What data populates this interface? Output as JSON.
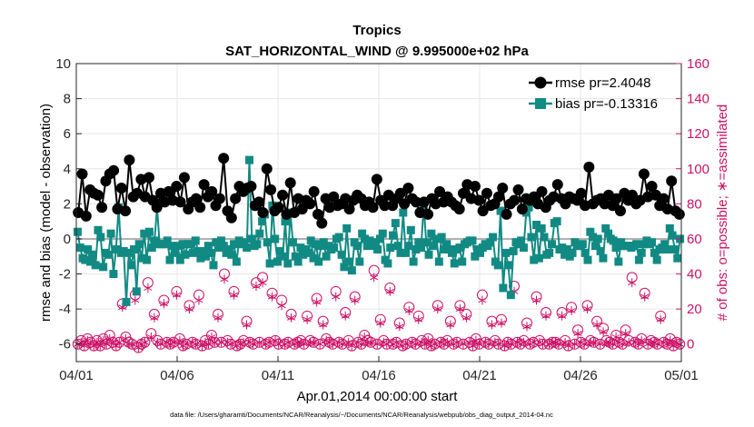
{
  "chart_data": {
    "type": "line",
    "title": "Tropics",
    "subtitle": "SAT_HORIZONTAL_WIND @ 9.995000e+02 hPa",
    "xlabel": "Apr.01,2014 00:00:00 start",
    "ylabel_left": "rmse and bias (model - observation)",
    "ylabel_right": "# of obs: o=possible; ∗=assimilated",
    "footnote": "data file: /Users/gharamti/Documents/NCAR/Reanalysis/~/Documents/NCAR/Reanalysis/webpub/obs_diag_output_2014-04.nc",
    "x_range": [
      0,
      30
    ],
    "ylim_left": [
      -7,
      10
    ],
    "ylim_right": [
      -10,
      160
    ],
    "x_tick_values": [
      0,
      5,
      10,
      15,
      20,
      25,
      30
    ],
    "x_tick_labels": [
      "04/01",
      "04/06",
      "04/11",
      "04/16",
      "04/21",
      "04/26",
      "05/01"
    ],
    "y_ticks_left": [
      "10",
      "8",
      "6",
      "4",
      "2",
      "0",
      "-2",
      "-4",
      "-6"
    ],
    "y_ticks_right": [
      "160",
      "140",
      "120",
      "100",
      "80",
      "60",
      "40",
      "20",
      "0"
    ],
    "legend_position": "top-right",
    "colors": {
      "rmse": "#000000",
      "bias": "#128a84",
      "obs": "#cc1166",
      "zero_line": "#b0b0b0"
    },
    "series": [
      {
        "name": "rmse pr=2.4048",
        "marker": "circle",
        "values": [
          1.5,
          3.7,
          1.3,
          2.8,
          2.6,
          2.5,
          1.8,
          3.3,
          3.7,
          3.9,
          1.7,
          2.9,
          1.6,
          4.5,
          2.4,
          2.6,
          3.4,
          2.4,
          3.5,
          2.2,
          1.8,
          2.6,
          2.1,
          2.7,
          2.2,
          3.0,
          2.1,
          3.5,
          1.7,
          2.1,
          2.3,
          1.8,
          3.1,
          2.4,
          2.7,
          1.9,
          2.3,
          4.6,
          1.6,
          1.2,
          2.3,
          3.0,
          2.7,
          2.9,
          3.0,
          1.9,
          2.1,
          1.5,
          4.0,
          2.8,
          1.6,
          1.8,
          2.5,
          1.4,
          3.2,
          1.5,
          2.3,
          1.7,
          2.2,
          2.0,
          2.7,
          1.4,
          0.9,
          2.3,
          1.8,
          2.4,
          1.9,
          2.0,
          2.3,
          1.7,
          2.2,
          2.5,
          2.3,
          1.9,
          2.1,
          1.8,
          3.4,
          2.2,
          1.9,
          2.5,
          1.9,
          2.3,
          2.6,
          2.0,
          2.9,
          2.3,
          2.1,
          1.5,
          2.1,
          1.4,
          2.3,
          2.0,
          2.7,
          2.1,
          2.4,
          2.1,
          1.9,
          1.7,
          2.6,
          3.1,
          2.3,
          3.0,
          2.2,
          1.6,
          2.6,
          1.9,
          2.0,
          2.4,
          2.9,
          1.4,
          2.0,
          2.2,
          2.8,
          1.7,
          2.3,
          2.2,
          2.4,
          2.0,
          2.7,
          1.8,
          2.2,
          2.4,
          3.1,
          2.3,
          2.0,
          2.4,
          2.3,
          2.2,
          2.6,
          1.9,
          4.1,
          2.0,
          2.2,
          2.3,
          2.0,
          2.5,
          1.9,
          2.3,
          1.6,
          2.6,
          2.2,
          2.5,
          2.0,
          2.2,
          3.7,
          2.4,
          3.0,
          2.5,
          1.9,
          2.3,
          1.7,
          3.3,
          1.6,
          1.4
        ]
      },
      {
        "name": "bias pr=-0.13316",
        "marker": "square",
        "values": [
          0.4,
          -0.5,
          -1.1,
          -1.2,
          -0.6,
          -1.3,
          -0.9,
          -1.5,
          0.5,
          0.1,
          -1.6,
          -0.8,
          -0.9,
          0.3,
          -2.0,
          -0.6,
          1.8,
          -0.8,
          -0.7,
          -3.6,
          -0.8,
          -1.5,
          -0.6,
          -3.0,
          -0.3,
          -1.1,
          0.3,
          -1.2,
          0.4,
          -0.5,
          -0.1,
          1.8,
          -0.3,
          -0.3,
          -0.3,
          -0.1,
          -1.2,
          -0.4,
          -0.8,
          -0.4,
          -1.2,
          -0.3,
          -0.9,
          -0.3,
          -0.3,
          -0.8,
          -0.1,
          -0.7,
          -1.1,
          -0.7,
          -1.0,
          -0.4,
          -0.8,
          -1.5,
          -0.2,
          -0.5,
          -0.1,
          -0.4,
          -0.8,
          -0.6,
          -0.9,
          -0.3,
          -1.3,
          -0.1,
          -0.3,
          -0.2,
          -0.5,
          4.5,
          0.0,
          -0.4,
          -0.3,
          0.3,
          1.0,
          1.4,
          -0.2,
          -1.4,
          1.9,
          0.0,
          -1.3,
          -0.7,
          -1.0,
          1.0,
          -1.4,
          1.5,
          -0.2,
          -1.0,
          -1.3,
          -0.5,
          -0.9,
          -0.6,
          -0.8,
          -0.1,
          -1.1,
          -0.3,
          -1.3,
          -0.4,
          -0.2,
          -1.0,
          -0.4,
          -0.6,
          -0.5,
          0.0,
          0.1,
          -0.9,
          -1.6,
          0.6,
          -1.3,
          -1.8,
          -0.2,
          -0.4,
          -1.3,
          0.3,
          0.0,
          -0.4,
          -0.1,
          -0.2,
          -0.4,
          -0.6,
          0.0,
          0.3,
          -1.2,
          -1.4,
          -0.5,
          0.2,
          0.9,
          -0.4,
          -0.8,
          1.5,
          -0.8,
          -0.4,
          0.5,
          -1.3,
          -0.6,
          -0.2,
          -0.5,
          1.9,
          -0.2,
          -0.9,
          0.3,
          -0.4,
          0.0,
          -1.3,
          0.1,
          -0.6,
          -0.3,
          -0.6,
          -0.8,
          -1.4,
          -0.6,
          -0.5,
          -1.3,
          -0.3,
          -0.2,
          -0.1,
          -0.1,
          -1.0,
          -0.6,
          -0.8,
          -0.5,
          -0.3,
          -0.4,
          -0.2,
          0.1,
          -1.3,
          -1.5,
          1.6,
          -2.8,
          -0.8,
          -1.5,
          -3.2,
          -0.7,
          -0.2,
          -0.3,
          -0.1,
          -0.5,
          1.5,
          1.8,
          0.1,
          -1.2,
          0.8,
          -1.1,
          0.6,
          0.1,
          -0.9,
          -0.8,
          -0.3,
          0.9,
          1.0,
          -0.6,
          -0.5,
          -0.9,
          -0.6,
          -1.0,
          -0.8,
          -0.2,
          -0.4,
          -0.4,
          -0.3,
          -0.8,
          -1.2,
          0.4,
          0.1,
          -0.4,
          0.0,
          -0.7,
          -1.1,
          0.6,
          0.3,
          0.0,
          -0.1,
          -0.5,
          -1.3,
          -0.2,
          -0.4,
          -0.4,
          -0.4,
          -0.5,
          -0.4,
          -0.3,
          -1.2,
          -0.8,
          -0.3,
          -0.1,
          -0.3,
          -0.2,
          -0.8,
          -1.2,
          -0.6,
          -0.5,
          -0.3,
          -0.6,
          0.6,
          0.2,
          -0.6,
          -1.1,
          0.0
        ]
      },
      {
        "name": "possible (o)",
        "marker": "open-circle",
        "values": [
          0,
          2,
          -1,
          3,
          1,
          -1,
          2,
          -1,
          3,
          0,
          5,
          1,
          -1,
          1,
          23,
          4,
          1,
          0,
          28,
          -2,
          0,
          1,
          35,
          6,
          17,
          2,
          0,
          25,
          1,
          0,
          1,
          30,
          3,
          -1,
          0,
          22,
          1,
          0,
          28,
          -1,
          2,
          0,
          5,
          1,
          17,
          1,
          40,
          2,
          0,
          30,
          -1,
          0,
          2,
          13,
          1,
          0,
          35,
          1,
          38,
          0,
          1,
          29,
          2,
          0,
          25,
          0,
          1,
          17,
          0,
          1,
          2,
          0,
          16,
          2,
          1,
          26,
          0,
          13,
          3,
          1,
          0,
          30,
          1,
          0,
          18,
          2,
          -1,
          27,
          1,
          0,
          5,
          2,
          1,
          42,
          0,
          14,
          2,
          0,
          32,
          0,
          1,
          12,
          -1,
          0,
          21,
          1,
          0,
          16,
          2,
          0,
          3,
          -1,
          0,
          22,
          1,
          0,
          2,
          13,
          0,
          1,
          22,
          0,
          17,
          1,
          -1,
          3,
          0,
          28,
          1,
          0,
          13,
          2,
          0,
          14,
          -1,
          1,
          0,
          33,
          1,
          0,
          2,
          12,
          0,
          1,
          27,
          2,
          0,
          18,
          0,
          1,
          1,
          0,
          18,
          2,
          -1,
          21,
          0,
          8,
          1,
          0,
          22,
          2,
          1,
          13,
          0,
          9,
          2,
          1,
          0,
          5,
          1,
          0,
          8,
          2,
          38,
          1,
          0,
          3,
          29,
          0,
          2,
          1,
          0,
          16,
          1,
          0,
          3,
          -1,
          1,
          0
        ]
      },
      {
        "name": "assimilated (∗)",
        "marker": "star",
        "values": [
          0,
          1,
          -1,
          2,
          0,
          -1,
          1,
          -1,
          2,
          0,
          3,
          1,
          -1,
          1,
          21,
          3,
          0,
          0,
          25,
          -2,
          0,
          1,
          32,
          4,
          15,
          1,
          0,
          23,
          1,
          0,
          1,
          28,
          2,
          -1,
          0,
          20,
          1,
          0,
          25,
          -1,
          1,
          0,
          4,
          1,
          15,
          1,
          37,
          1,
          0,
          28,
          -1,
          0,
          1,
          11,
          1,
          0,
          33,
          1,
          35,
          0,
          1,
          27,
          2,
          0,
          22,
          0,
          1,
          15,
          0,
          1,
          1,
          0,
          14,
          1,
          1,
          24,
          0,
          11,
          2,
          1,
          0,
          27,
          1,
          0,
          16,
          1,
          -1,
          25,
          1,
          0,
          4,
          1,
          1,
          38,
          0,
          12,
          1,
          0,
          30,
          0,
          1,
          10,
          -1,
          0,
          19,
          1,
          0,
          14,
          1,
          0,
          2,
          -1,
          0,
          20,
          1,
          0,
          1,
          11,
          0,
          1,
          20,
          0,
          15,
          1,
          -1,
          2,
          0,
          25,
          1,
          0,
          11,
          1,
          0,
          12,
          -1,
          1,
          0,
          30,
          1,
          0,
          1,
          10,
          0,
          1,
          25,
          1,
          0,
          16,
          0,
          1,
          1,
          0,
          16,
          1,
          -1,
          19,
          0,
          6,
          1,
          0,
          20,
          1,
          1,
          11,
          0,
          7,
          1,
          1,
          0,
          4,
          1,
          0,
          6,
          1,
          35,
          1,
          0,
          2,
          27,
          0,
          1,
          1,
          0,
          14,
          1,
          0,
          2,
          -1,
          1,
          0
        ]
      }
    ]
  }
}
